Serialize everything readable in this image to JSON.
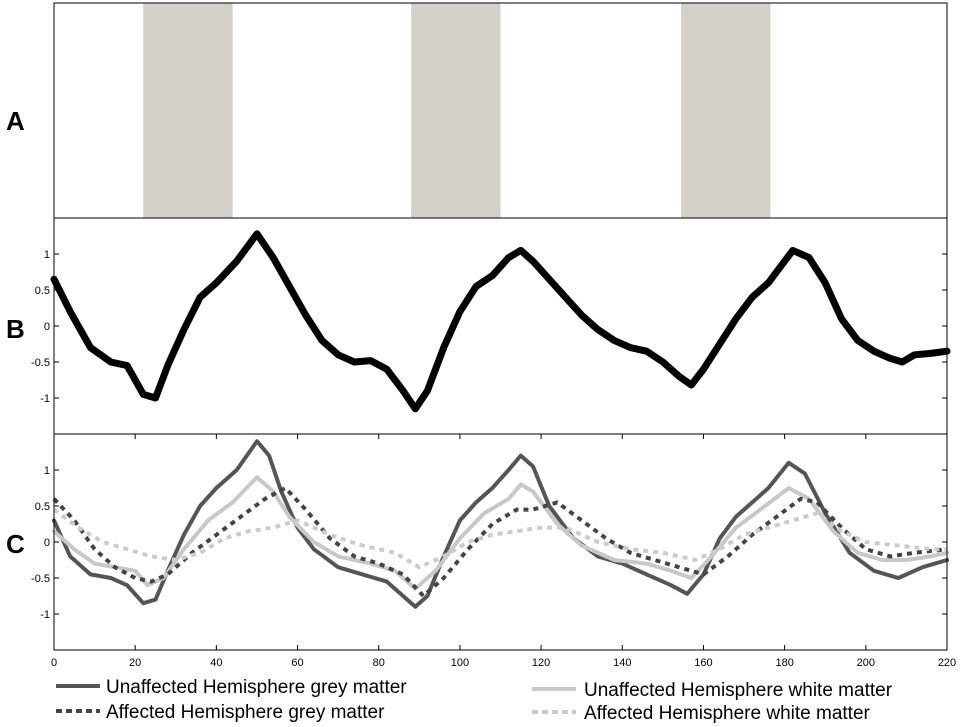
{
  "panels": {
    "a_label": "A",
    "b_label": "B",
    "c_label": "C"
  },
  "chart_data": [
    {
      "panel": "A",
      "type": "area",
      "description_of_marks": "stimulus blocks",
      "x_range": [
        0,
        220
      ],
      "blocks": [
        [
          22,
          44
        ],
        [
          88,
          110
        ],
        [
          154.5,
          176.5
        ]
      ],
      "block_color": "#d4d0c8",
      "show_axes": false
    },
    {
      "panel": "B",
      "type": "line",
      "xlim": [
        0,
        220
      ],
      "ylim": [
        -1.5,
        1.5
      ],
      "yticks": [
        -1,
        -0.5,
        0,
        0.5,
        1
      ],
      "ytick_labels": [
        "-1",
        "-0.5",
        "0",
        "0.5",
        "1"
      ],
      "series": [
        {
          "color": "#000000",
          "x": [
            0,
            4,
            9,
            14,
            18,
            22,
            25,
            28,
            32,
            36,
            40,
            45,
            50,
            54,
            58,
            62,
            66,
            70,
            74,
            78,
            82,
            86,
            89,
            92,
            96,
            100,
            104,
            108,
            112,
            115,
            118,
            122,
            126,
            130,
            134,
            138,
            142,
            146,
            150,
            154,
            157,
            160,
            164,
            168,
            172,
            176,
            180,
            182,
            186,
            190,
            194,
            198,
            202,
            206,
            209,
            212,
            216,
            220
          ],
          "y": [
            0.65,
            0.2,
            -0.3,
            -0.5,
            -0.55,
            -0.95,
            -1.0,
            -0.55,
            -0.05,
            0.4,
            0.6,
            0.9,
            1.28,
            0.95,
            0.55,
            0.15,
            -0.2,
            -0.4,
            -0.5,
            -0.48,
            -0.6,
            -0.9,
            -1.15,
            -0.9,
            -0.3,
            0.2,
            0.55,
            0.7,
            0.95,
            1.05,
            0.9,
            0.65,
            0.4,
            0.15,
            -0.05,
            -0.2,
            -0.3,
            -0.35,
            -0.5,
            -0.7,
            -0.82,
            -0.6,
            -0.25,
            0.1,
            0.4,
            0.6,
            0.9,
            1.05,
            0.95,
            0.6,
            0.1,
            -0.2,
            -0.35,
            -0.45,
            -0.5,
            -0.4,
            -0.38,
            -0.35
          ]
        }
      ]
    },
    {
      "panel": "C",
      "type": "line",
      "xlim": [
        0,
        220
      ],
      "ylim": [
        -1.5,
        1.5
      ],
      "yticks": [
        -1,
        -0.5,
        0,
        0.5,
        1
      ],
      "ytick_labels": [
        "-1",
        "-0.5",
        "0",
        "0.5",
        "1"
      ],
      "xticks": [
        0,
        20,
        40,
        60,
        80,
        100,
        120,
        140,
        160,
        180,
        200,
        220
      ],
      "xtick_labels": [
        "0",
        "20",
        "40",
        "60",
        "80",
        "100",
        "120",
        "140",
        "160",
        "180",
        "200",
        "220"
      ],
      "series": [
        {
          "name": "Unaffected Hemisphere grey matter",
          "color": "#555555",
          "dash": "solid",
          "x": [
            0,
            4,
            9,
            14,
            18,
            22,
            25,
            28,
            32,
            36,
            40,
            45,
            50,
            53,
            56,
            60,
            64,
            70,
            76,
            82,
            86,
            89,
            92,
            96,
            100,
            104,
            108,
            112,
            115,
            118,
            122,
            128,
            134,
            140,
            146,
            152,
            156,
            160,
            164,
            168,
            172,
            176,
            181,
            185,
            190,
            196,
            202,
            208,
            214,
            220
          ],
          "y": [
            0.3,
            -0.2,
            -0.45,
            -0.5,
            -0.6,
            -0.85,
            -0.8,
            -0.4,
            0.1,
            0.5,
            0.75,
            1.0,
            1.4,
            1.2,
            0.7,
            0.2,
            -0.1,
            -0.35,
            -0.45,
            -0.55,
            -0.75,
            -0.9,
            -0.75,
            -0.2,
            0.3,
            0.55,
            0.75,
            1.0,
            1.2,
            1.05,
            0.5,
            0.05,
            -0.2,
            -0.3,
            -0.45,
            -0.6,
            -0.72,
            -0.45,
            0.05,
            0.35,
            0.55,
            0.75,
            1.1,
            0.95,
            0.4,
            -0.15,
            -0.4,
            -0.5,
            -0.35,
            -0.25
          ]
        },
        {
          "name": "Unaffected Hemisphere white matter",
          "color": "#c8c8c8",
          "dash": "solid",
          "x": [
            0,
            5,
            10,
            15,
            20,
            23,
            27,
            32,
            38,
            44,
            50,
            54,
            58,
            64,
            70,
            78,
            84,
            89,
            94,
            100,
            106,
            112,
            115,
            118,
            124,
            130,
            138,
            146,
            152,
            157,
            162,
            168,
            174,
            181,
            186,
            192,
            198,
            204,
            210,
            216,
            220
          ],
          "y": [
            0.15,
            -0.1,
            -0.3,
            -0.35,
            -0.4,
            -0.6,
            -0.5,
            -0.1,
            0.3,
            0.55,
            0.9,
            0.7,
            0.35,
            0.0,
            -0.2,
            -0.3,
            -0.4,
            -0.65,
            -0.4,
            0.05,
            0.4,
            0.6,
            0.8,
            0.7,
            0.25,
            -0.05,
            -0.25,
            -0.3,
            -0.4,
            -0.5,
            -0.2,
            0.2,
            0.45,
            0.75,
            0.6,
            0.15,
            -0.15,
            -0.25,
            -0.25,
            -0.2,
            -0.15
          ]
        },
        {
          "name": "Affected Hemisphere grey matter",
          "color": "#444444",
          "dash": "dashed",
          "x": [
            0,
            5,
            10,
            15,
            20,
            24,
            28,
            34,
            40,
            46,
            52,
            57,
            62,
            68,
            74,
            80,
            86,
            91,
            96,
            102,
            108,
            114,
            118,
            124,
            130,
            136,
            142,
            148,
            154,
            160,
            166,
            172,
            178,
            184,
            188,
            194,
            200,
            206,
            212,
            220
          ],
          "y": [
            0.6,
            0.3,
            -0.1,
            -0.35,
            -0.5,
            -0.55,
            -0.45,
            -0.15,
            0.1,
            0.35,
            0.6,
            0.75,
            0.45,
            0.05,
            -0.2,
            -0.3,
            -0.45,
            -0.75,
            -0.5,
            -0.1,
            0.25,
            0.45,
            0.45,
            0.55,
            0.3,
            0.05,
            -0.15,
            -0.25,
            -0.35,
            -0.45,
            -0.2,
            0.1,
            0.35,
            0.6,
            0.55,
            0.2,
            -0.1,
            -0.2,
            -0.15,
            -0.1
          ]
        },
        {
          "name": "Affected Hemisphere white matter",
          "color": "#cccccc",
          "dash": "dashed",
          "x": [
            0,
            6,
            12,
            18,
            24,
            30,
            36,
            42,
            48,
            54,
            60,
            68,
            76,
            84,
            90,
            96,
            102,
            108,
            114,
            120,
            126,
            134,
            142,
            150,
            158,
            164,
            170,
            176,
            182,
            188,
            194,
            200,
            208,
            216,
            220
          ],
          "y": [
            0.45,
            0.2,
            0.0,
            -0.1,
            -0.2,
            -0.25,
            -0.15,
            0.05,
            0.15,
            0.2,
            0.3,
            0.1,
            -0.05,
            -0.15,
            -0.35,
            -0.2,
            0.0,
            0.1,
            0.15,
            0.2,
            0.2,
            0.0,
            -0.1,
            -0.15,
            -0.25,
            -0.1,
            0.1,
            0.2,
            0.3,
            0.4,
            0.15,
            0.0,
            -0.05,
            -0.1,
            -0.1
          ]
        }
      ],
      "legend": {
        "placement": "bottom",
        "entries": [
          {
            "label": "Unaffected Hemisphere grey matter",
            "color": "#555555",
            "dash": "solid"
          },
          {
            "label": "Affected Hemisphere grey matter",
            "color": "#444444",
            "dash": "dashed"
          },
          {
            "label": "Unaffected Hemisphere white matter",
            "color": "#c8c8c8",
            "dash": "solid"
          },
          {
            "label": "Affected Hemisphere white matter",
            "color": "#cccccc",
            "dash": "dashed"
          }
        ]
      }
    }
  ]
}
